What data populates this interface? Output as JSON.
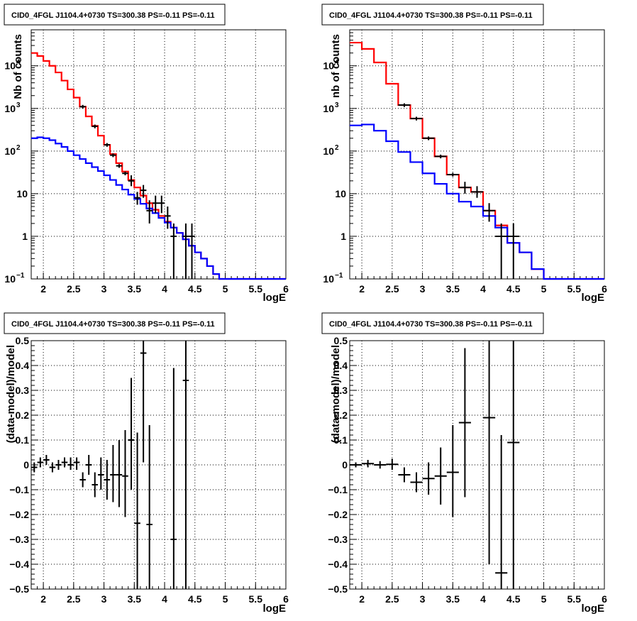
{
  "chart_data": [
    {
      "type": "step-histogram",
      "title": "CID0_4FGL J1104.4+0730 TS=300.38 PS=-0.11 PS=-0.11",
      "xlabel": "logE",
      "ylabel": "Nb of counts",
      "xlim": [
        1.8,
        6.0
      ],
      "ylim": [
        0.1,
        70000
      ],
      "yscale": "log",
      "grid": true,
      "xticks": [
        "2",
        "2.5",
        "3",
        "3.5",
        "4",
        "4.5",
        "5",
        "5.5",
        "6"
      ],
      "yticks": [
        {
          "value": 0.1,
          "base": "10",
          "exp": "−1"
        },
        {
          "value": 1,
          "label": "1"
        },
        {
          "value": 10,
          "label": "10"
        },
        {
          "value": 100,
          "base": "10",
          "exp": "2"
        },
        {
          "value": 1000,
          "base": "10",
          "exp": "3"
        },
        {
          "value": 10000,
          "base": "10",
          "exp": "4"
        }
      ],
      "bin_edges": [
        1.8,
        1.9,
        2.0,
        2.1,
        2.2,
        2.3,
        2.4,
        2.5,
        2.6,
        2.7,
        2.8,
        2.9,
        3.0,
        3.1,
        3.2,
        3.3,
        3.4,
        3.5,
        3.6,
        3.7,
        3.8,
        3.9,
        4.0,
        4.1,
        4.2,
        4.3,
        4.4,
        4.5,
        4.6,
        4.7,
        4.8,
        4.9,
        5.0,
        5.1,
        5.2,
        5.3,
        5.4,
        5.5,
        5.6,
        5.7,
        5.8,
        5.9,
        6.0
      ],
      "series": [
        {
          "color": "#ff0000",
          "values": [
            20000,
            17000,
            13000,
            10000,
            7000,
            4500,
            2800,
            1800,
            1100,
            650,
            390,
            230,
            140,
            85,
            52,
            33,
            21,
            14,
            9,
            6,
            4.2,
            3,
            2.2,
            1.6,
            1.2,
            0.85,
            0.6,
            0.42,
            0.3,
            0.2,
            0.13,
            0.1,
            0.1,
            0.1,
            0.1,
            0.1,
            0.1,
            0.1,
            0.1,
            0.1,
            0.1,
            0.1
          ]
        },
        {
          "color": "#0000ff",
          "values": [
            200,
            210,
            200,
            180,
            150,
            125,
            100,
            80,
            65,
            52,
            42,
            34,
            27,
            21,
            16,
            12.5,
            9.5,
            7.5,
            5.8,
            4.5,
            3.5,
            2.7,
            2.1,
            1.6,
            1.2,
            0.85,
            0.6,
            0.42,
            0.3,
            0.2,
            0.13,
            0.1,
            0.1,
            0.1,
            0.1,
            0.1,
            0.1,
            0.1,
            0.1,
            0.1,
            0.1,
            0.1
          ]
        }
      ],
      "data_points": [
        {
          "x": 2.65,
          "y": 1100
        },
        {
          "x": 2.85,
          "y": 380
        },
        {
          "x": 3.05,
          "y": 140
        },
        {
          "x": 3.15,
          "y": 80
        },
        {
          "x": 3.25,
          "y": 45
        },
        {
          "x": 3.35,
          "y": 30
        },
        {
          "x": 3.45,
          "y": 20,
          "ylo": 15,
          "yhi": 27
        },
        {
          "x": 3.55,
          "y": 8,
          "ylo": 5.5,
          "yhi": 11
        },
        {
          "x": 3.65,
          "y": 12,
          "ylo": 8,
          "yhi": 16
        },
        {
          "x": 3.75,
          "y": 4,
          "ylo": 2,
          "yhi": 7
        },
        {
          "x": 3.85,
          "y": 6,
          "ylo": 3.5,
          "yhi": 9
        },
        {
          "x": 3.95,
          "y": 6,
          "ylo": 3.5,
          "yhi": 9
        },
        {
          "x": 4.05,
          "y": 3,
          "ylo": 1.5,
          "yhi": 5
        },
        {
          "x": 4.15,
          "y": 1,
          "ylo": 0.1,
          "yhi": 2
        },
        {
          "x": 4.35,
          "y": 1,
          "ylo": 0.1,
          "yhi": 2
        },
        {
          "x": 4.45,
          "y": 1,
          "ylo": 0.1,
          "yhi": 2
        }
      ]
    },
    {
      "type": "step-histogram",
      "title": "CID0_4FGL J1104.4+0730 TS=300.38 PS=-0.11 PS=-0.11",
      "xlabel": "logE",
      "ylabel": "nb of counts",
      "xlim": [
        1.8,
        6.0
      ],
      "ylim": [
        0.1,
        70000
      ],
      "yscale": "log",
      "grid": true,
      "xticks": [
        "2",
        "2.5",
        "3",
        "3.5",
        "4",
        "4.5",
        "5",
        "5.5",
        "6"
      ],
      "yticks": [
        {
          "value": 0.1,
          "base": "10",
          "exp": "−1"
        },
        {
          "value": 1,
          "label": "1"
        },
        {
          "value": 10,
          "label": "10"
        },
        {
          "value": 100,
          "base": "10",
          "exp": "2"
        },
        {
          "value": 1000,
          "base": "10",
          "exp": "3"
        },
        {
          "value": 10000,
          "base": "10",
          "exp": "4"
        }
      ],
      "bin_edges": [
        1.8,
        2.0,
        2.2,
        2.4,
        2.6,
        2.8,
        3.0,
        3.2,
        3.4,
        3.6,
        3.8,
        4.0,
        4.2,
        4.4,
        4.6,
        4.8,
        5.0,
        5.2,
        5.4,
        5.6,
        5.8,
        6.0
      ],
      "series": [
        {
          "color": "#ff0000",
          "values": [
            35000,
            25000,
            12000,
            3800,
            1200,
            580,
            200,
            75,
            28,
            14,
            11,
            4,
            1.8,
            0.7,
            0.42,
            0.17,
            0.1,
            0.1,
            0.1,
            0.1,
            0.1
          ]
        },
        {
          "color": "#0000ff",
          "values": [
            400,
            420,
            300,
            170,
            95,
            55,
            30,
            17,
            10,
            6.5,
            5,
            3,
            1.6,
            0.7,
            0.42,
            0.17,
            0.1,
            0.1,
            0.1,
            0.1,
            0.1
          ]
        }
      ],
      "data_points": [
        {
          "x": 2.7,
          "y": 1200
        },
        {
          "x": 2.9,
          "y": 580
        },
        {
          "x": 3.1,
          "y": 200
        },
        {
          "x": 3.3,
          "y": 75
        },
        {
          "x": 3.5,
          "y": 28
        },
        {
          "x": 3.7,
          "y": 14,
          "ylo": 10,
          "yhi": 19
        },
        {
          "x": 3.9,
          "y": 11,
          "ylo": 8,
          "yhi": 15
        },
        {
          "x": 4.1,
          "y": 4,
          "ylo": 2.2,
          "yhi": 6
        },
        {
          "x": 4.3,
          "y": 1,
          "ylo": 0.1,
          "yhi": 2
        },
        {
          "x": 4.5,
          "y": 1,
          "ylo": 0.1,
          "yhi": 2
        }
      ]
    },
    {
      "type": "scatter",
      "title": "CID0_4FGL J1104.4+0730 TS=300.38 PS=-0.11 PS=-0.11",
      "xlabel": "logE",
      "ylabel": "(data-model)/model",
      "xlim": [
        1.8,
        6.0
      ],
      "ylim": [
        -0.5,
        0.5
      ],
      "grid": true,
      "xticks": [
        "2",
        "2.5",
        "3",
        "3.5",
        "4",
        "4.5",
        "5",
        "5.5",
        "6"
      ],
      "yticks": [
        "−0.5",
        "−0.4",
        "−0.3",
        "−0.2",
        "−0.1",
        "0",
        "0.1",
        "0.2",
        "0.3",
        "0.4",
        "0.5"
      ],
      "xerr": 0.05,
      "points": [
        {
          "x": 1.85,
          "y": -0.01,
          "ylo": -0.03,
          "yhi": 0.01
        },
        {
          "x": 1.95,
          "y": 0.01,
          "ylo": -0.01,
          "yhi": 0.03
        },
        {
          "x": 2.05,
          "y": 0.02,
          "ylo": 0.0,
          "yhi": 0.04
        },
        {
          "x": 2.15,
          "y": -0.01,
          "ylo": -0.03,
          "yhi": 0.01
        },
        {
          "x": 2.25,
          "y": 0.0,
          "ylo": -0.02,
          "yhi": 0.02
        },
        {
          "x": 2.35,
          "y": 0.01,
          "ylo": -0.01,
          "yhi": 0.03
        },
        {
          "x": 2.45,
          "y": 0.0,
          "ylo": -0.02,
          "yhi": 0.03
        },
        {
          "x": 2.55,
          "y": 0.01,
          "ylo": -0.02,
          "yhi": 0.03
        },
        {
          "x": 2.65,
          "y": -0.06,
          "ylo": -0.09,
          "yhi": -0.03
        },
        {
          "x": 2.75,
          "y": 0.0,
          "ylo": -0.04,
          "yhi": 0.04
        },
        {
          "x": 2.85,
          "y": -0.08,
          "ylo": -0.13,
          "yhi": -0.03
        },
        {
          "x": 2.95,
          "y": -0.04,
          "ylo": -0.1,
          "yhi": 0.03
        },
        {
          "x": 3.05,
          "y": -0.06,
          "ylo": -0.14,
          "yhi": 0.02
        },
        {
          "x": 3.15,
          "y": -0.04,
          "ylo": -0.15,
          "yhi": 0.08
        },
        {
          "x": 3.25,
          "y": -0.04,
          "ylo": -0.17,
          "yhi": 0.1
        },
        {
          "x": 3.35,
          "y": -0.045,
          "ylo": -0.21,
          "yhi": 0.14
        },
        {
          "x": 3.45,
          "y": 0.1,
          "ylo": -0.1,
          "yhi": 0.35
        },
        {
          "x": 3.55,
          "y": -0.235,
          "ylo": -0.5,
          "yhi": 0.13
        },
        {
          "x": 3.65,
          "y": 0.45,
          "ylo": 0.01,
          "yhi": 0.5
        },
        {
          "x": 3.75,
          "y": -0.24,
          "ylo": -0.5,
          "yhi": 0.16
        },
        {
          "x": 4.15,
          "y": -0.3,
          "ylo": -0.5,
          "yhi": 0.39
        },
        {
          "x": 4.35,
          "y": 0.34,
          "ylo": -0.5,
          "yhi": 0.5
        }
      ]
    },
    {
      "type": "scatter",
      "title": "CID0_4FGL J1104.4+0730 TS=300.38 PS=-0.11 PS=-0.11",
      "xlabel": "logE",
      "ylabel": "(data-model)/model",
      "xlim": [
        1.8,
        6.0
      ],
      "ylim": [
        -0.5,
        0.5
      ],
      "grid": true,
      "xticks": [
        "2",
        "2.5",
        "3",
        "3.5",
        "4",
        "4.5",
        "5",
        "5.5",
        "6"
      ],
      "yticks": [
        "−0.5",
        "−0.4",
        "−0.3",
        "−0.2",
        "−0.1",
        "0",
        "0.1",
        "0.2",
        "0.3",
        "0.4",
        "0.5"
      ],
      "xerr": 0.1,
      "points": [
        {
          "x": 1.9,
          "y": 0.0,
          "ylo": -0.01,
          "yhi": 0.01
        },
        {
          "x": 2.1,
          "y": 0.005,
          "ylo": -0.01,
          "yhi": 0.02
        },
        {
          "x": 2.3,
          "y": 0.0,
          "ylo": -0.015,
          "yhi": 0.015
        },
        {
          "x": 2.5,
          "y": 0.002,
          "ylo": -0.02,
          "yhi": 0.025
        },
        {
          "x": 2.7,
          "y": -0.04,
          "ylo": -0.07,
          "yhi": -0.01
        },
        {
          "x": 2.9,
          "y": -0.07,
          "ylo": -0.11,
          "yhi": -0.03
        },
        {
          "x": 3.1,
          "y": -0.055,
          "ylo": -0.12,
          "yhi": 0.01
        },
        {
          "x": 3.3,
          "y": -0.045,
          "ylo": -0.16,
          "yhi": 0.07
        },
        {
          "x": 3.5,
          "y": -0.03,
          "ylo": -0.21,
          "yhi": 0.16
        },
        {
          "x": 3.7,
          "y": 0.17,
          "ylo": -0.13,
          "yhi": 0.47
        },
        {
          "x": 4.1,
          "y": 0.19,
          "ylo": -0.4,
          "yhi": 0.5
        },
        {
          "x": 4.3,
          "y": -0.435,
          "ylo": -0.5,
          "yhi": 0.12
        },
        {
          "x": 4.5,
          "y": 0.09,
          "ylo": -0.5,
          "yhi": 0.5
        }
      ]
    }
  ]
}
